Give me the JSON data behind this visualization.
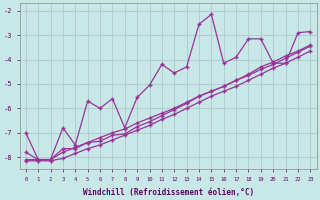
{
  "x_values": [
    0,
    1,
    2,
    3,
    4,
    5,
    6,
    7,
    8,
    9,
    10,
    11,
    12,
    13,
    14,
    15,
    16,
    17,
    18,
    19,
    20,
    21,
    22,
    23
  ],
  "zigzag_y": [
    -7.0,
    -8.1,
    -8.1,
    -6.8,
    -7.5,
    -5.7,
    -6.0,
    -5.6,
    -6.8,
    -5.55,
    -5.05,
    -4.2,
    -4.55,
    -4.3,
    -2.55,
    -2.15,
    -4.15,
    -3.9,
    -3.15,
    -3.15,
    -4.15,
    -4.15,
    -2.9,
    -2.85
  ],
  "straight1_y": [
    -7.8,
    -8.1,
    -8.1,
    -7.65,
    -7.65,
    -7.4,
    -7.35,
    -7.1,
    -7.05,
    -6.75,
    -6.55,
    -6.3,
    -6.05,
    -5.8,
    -5.5,
    -5.3,
    -5.1,
    -4.85,
    -4.6,
    -4.3,
    -4.1,
    -3.85,
    -3.65,
    -3.4
  ],
  "straight2_y": [
    -8.1,
    -8.1,
    -8.1,
    -7.8,
    -7.6,
    -7.4,
    -7.2,
    -7.0,
    -6.85,
    -6.6,
    -6.4,
    -6.2,
    -6.0,
    -5.75,
    -5.5,
    -5.3,
    -5.1,
    -4.85,
    -4.65,
    -4.4,
    -4.2,
    -3.95,
    -3.7,
    -3.45
  ],
  "straight3_y": [
    -8.15,
    -8.15,
    -8.15,
    -8.05,
    -7.85,
    -7.65,
    -7.5,
    -7.3,
    -7.1,
    -6.9,
    -6.7,
    -6.45,
    -6.25,
    -6.0,
    -5.75,
    -5.5,
    -5.3,
    -5.1,
    -4.85,
    -4.6,
    -4.35,
    -4.15,
    -3.9,
    -3.65
  ],
  "color": "#993399",
  "bg_color": "#c8e8e8",
  "grid_color": "#b0c8c8",
  "xlabel": "Windchill (Refroidissement éolien,°C)",
  "ylim": [
    -8.5,
    -1.7
  ],
  "xlim": [
    -0.5,
    23.5
  ],
  "yticks": [
    -8,
    -7,
    -6,
    -5,
    -4,
    -3,
    -2
  ],
  "xticks": [
    0,
    1,
    2,
    3,
    4,
    5,
    6,
    7,
    8,
    9,
    10,
    11,
    12,
    13,
    14,
    15,
    16,
    17,
    18,
    19,
    20,
    21,
    22,
    23
  ],
  "marker": "+",
  "title_color": "#660066",
  "axis_color": "#660066"
}
